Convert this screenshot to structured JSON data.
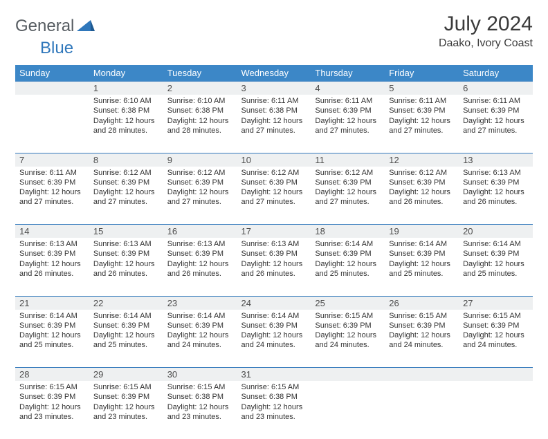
{
  "brand": {
    "text1": "General",
    "text2": "Blue"
  },
  "title": "July 2024",
  "location": "Daako, Ivory Coast",
  "colors": {
    "header_bg": "#3c87c7",
    "header_text": "#ffffff",
    "daynum_bg": "#eef0f1",
    "border": "#2f77bb",
    "brand_dark": "#555b60",
    "brand_blue": "#2f77bb",
    "body_text": "#333333"
  },
  "typography": {
    "title_fontsize": 30,
    "location_fontsize": 16,
    "header_fontsize": 13,
    "daynum_fontsize": 13,
    "cell_fontsize": 11
  },
  "weekdays": [
    "Sunday",
    "Monday",
    "Tuesday",
    "Wednesday",
    "Thursday",
    "Friday",
    "Saturday"
  ],
  "weeks": [
    [
      null,
      {
        "n": "1",
        "sr": "Sunrise: 6:10 AM",
        "ss": "Sunset: 6:38 PM",
        "d1": "Daylight: 12 hours",
        "d2": "and 28 minutes."
      },
      {
        "n": "2",
        "sr": "Sunrise: 6:10 AM",
        "ss": "Sunset: 6:38 PM",
        "d1": "Daylight: 12 hours",
        "d2": "and 28 minutes."
      },
      {
        "n": "3",
        "sr": "Sunrise: 6:11 AM",
        "ss": "Sunset: 6:38 PM",
        "d1": "Daylight: 12 hours",
        "d2": "and 27 minutes."
      },
      {
        "n": "4",
        "sr": "Sunrise: 6:11 AM",
        "ss": "Sunset: 6:39 PM",
        "d1": "Daylight: 12 hours",
        "d2": "and 27 minutes."
      },
      {
        "n": "5",
        "sr": "Sunrise: 6:11 AM",
        "ss": "Sunset: 6:39 PM",
        "d1": "Daylight: 12 hours",
        "d2": "and 27 minutes."
      },
      {
        "n": "6",
        "sr": "Sunrise: 6:11 AM",
        "ss": "Sunset: 6:39 PM",
        "d1": "Daylight: 12 hours",
        "d2": "and 27 minutes."
      }
    ],
    [
      {
        "n": "7",
        "sr": "Sunrise: 6:11 AM",
        "ss": "Sunset: 6:39 PM",
        "d1": "Daylight: 12 hours",
        "d2": "and 27 minutes."
      },
      {
        "n": "8",
        "sr": "Sunrise: 6:12 AM",
        "ss": "Sunset: 6:39 PM",
        "d1": "Daylight: 12 hours",
        "d2": "and 27 minutes."
      },
      {
        "n": "9",
        "sr": "Sunrise: 6:12 AM",
        "ss": "Sunset: 6:39 PM",
        "d1": "Daylight: 12 hours",
        "d2": "and 27 minutes."
      },
      {
        "n": "10",
        "sr": "Sunrise: 6:12 AM",
        "ss": "Sunset: 6:39 PM",
        "d1": "Daylight: 12 hours",
        "d2": "and 27 minutes."
      },
      {
        "n": "11",
        "sr": "Sunrise: 6:12 AM",
        "ss": "Sunset: 6:39 PM",
        "d1": "Daylight: 12 hours",
        "d2": "and 27 minutes."
      },
      {
        "n": "12",
        "sr": "Sunrise: 6:12 AM",
        "ss": "Sunset: 6:39 PM",
        "d1": "Daylight: 12 hours",
        "d2": "and 26 minutes."
      },
      {
        "n": "13",
        "sr": "Sunrise: 6:13 AM",
        "ss": "Sunset: 6:39 PM",
        "d1": "Daylight: 12 hours",
        "d2": "and 26 minutes."
      }
    ],
    [
      {
        "n": "14",
        "sr": "Sunrise: 6:13 AM",
        "ss": "Sunset: 6:39 PM",
        "d1": "Daylight: 12 hours",
        "d2": "and 26 minutes."
      },
      {
        "n": "15",
        "sr": "Sunrise: 6:13 AM",
        "ss": "Sunset: 6:39 PM",
        "d1": "Daylight: 12 hours",
        "d2": "and 26 minutes."
      },
      {
        "n": "16",
        "sr": "Sunrise: 6:13 AM",
        "ss": "Sunset: 6:39 PM",
        "d1": "Daylight: 12 hours",
        "d2": "and 26 minutes."
      },
      {
        "n": "17",
        "sr": "Sunrise: 6:13 AM",
        "ss": "Sunset: 6:39 PM",
        "d1": "Daylight: 12 hours",
        "d2": "and 26 minutes."
      },
      {
        "n": "18",
        "sr": "Sunrise: 6:14 AM",
        "ss": "Sunset: 6:39 PM",
        "d1": "Daylight: 12 hours",
        "d2": "and 25 minutes."
      },
      {
        "n": "19",
        "sr": "Sunrise: 6:14 AM",
        "ss": "Sunset: 6:39 PM",
        "d1": "Daylight: 12 hours",
        "d2": "and 25 minutes."
      },
      {
        "n": "20",
        "sr": "Sunrise: 6:14 AM",
        "ss": "Sunset: 6:39 PM",
        "d1": "Daylight: 12 hours",
        "d2": "and 25 minutes."
      }
    ],
    [
      {
        "n": "21",
        "sr": "Sunrise: 6:14 AM",
        "ss": "Sunset: 6:39 PM",
        "d1": "Daylight: 12 hours",
        "d2": "and 25 minutes."
      },
      {
        "n": "22",
        "sr": "Sunrise: 6:14 AM",
        "ss": "Sunset: 6:39 PM",
        "d1": "Daylight: 12 hours",
        "d2": "and 25 minutes."
      },
      {
        "n": "23",
        "sr": "Sunrise: 6:14 AM",
        "ss": "Sunset: 6:39 PM",
        "d1": "Daylight: 12 hours",
        "d2": "and 24 minutes."
      },
      {
        "n": "24",
        "sr": "Sunrise: 6:14 AM",
        "ss": "Sunset: 6:39 PM",
        "d1": "Daylight: 12 hours",
        "d2": "and 24 minutes."
      },
      {
        "n": "25",
        "sr": "Sunrise: 6:15 AM",
        "ss": "Sunset: 6:39 PM",
        "d1": "Daylight: 12 hours",
        "d2": "and 24 minutes."
      },
      {
        "n": "26",
        "sr": "Sunrise: 6:15 AM",
        "ss": "Sunset: 6:39 PM",
        "d1": "Daylight: 12 hours",
        "d2": "and 24 minutes."
      },
      {
        "n": "27",
        "sr": "Sunrise: 6:15 AM",
        "ss": "Sunset: 6:39 PM",
        "d1": "Daylight: 12 hours",
        "d2": "and 24 minutes."
      }
    ],
    [
      {
        "n": "28",
        "sr": "Sunrise: 6:15 AM",
        "ss": "Sunset: 6:39 PM",
        "d1": "Daylight: 12 hours",
        "d2": "and 23 minutes."
      },
      {
        "n": "29",
        "sr": "Sunrise: 6:15 AM",
        "ss": "Sunset: 6:39 PM",
        "d1": "Daylight: 12 hours",
        "d2": "and 23 minutes."
      },
      {
        "n": "30",
        "sr": "Sunrise: 6:15 AM",
        "ss": "Sunset: 6:38 PM",
        "d1": "Daylight: 12 hours",
        "d2": "and 23 minutes."
      },
      {
        "n": "31",
        "sr": "Sunrise: 6:15 AM",
        "ss": "Sunset: 6:38 PM",
        "d1": "Daylight: 12 hours",
        "d2": "and 23 minutes."
      },
      null,
      null,
      null
    ]
  ]
}
